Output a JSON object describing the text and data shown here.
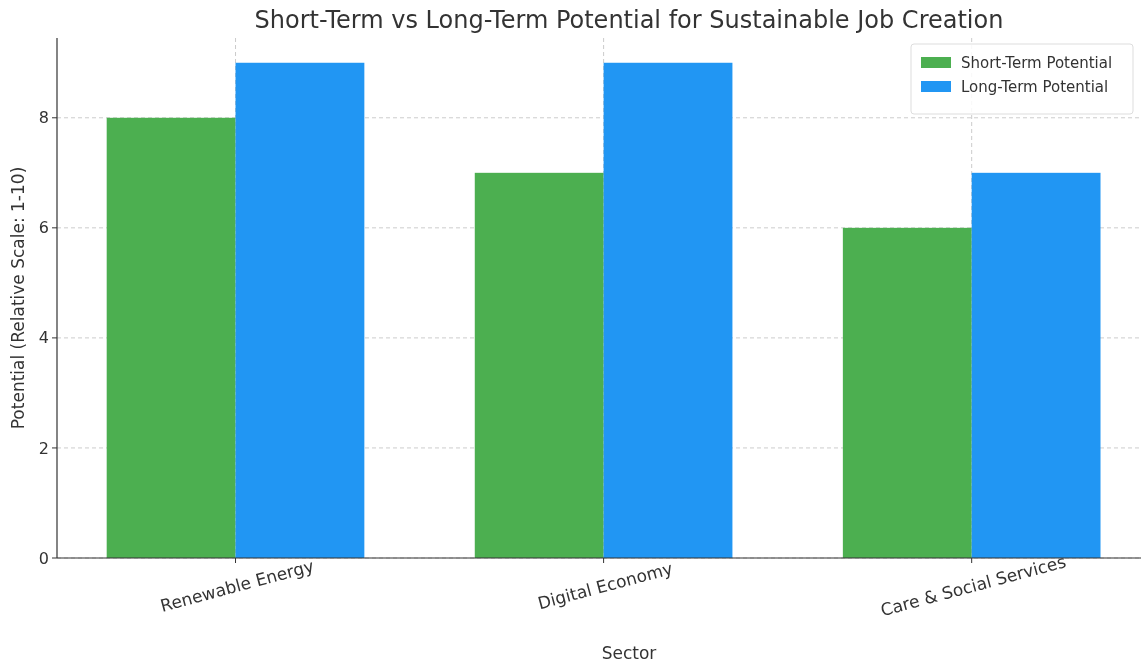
{
  "chart_data": {
    "type": "bar",
    "title": "Short-Term vs Long-Term Potential for Sustainable Job Creation",
    "xlabel": "Sector",
    "ylabel": "Potential (Relative Scale: 1-10)",
    "categories": [
      "Renewable Energy",
      "Digital Economy",
      "Care & Social Services"
    ],
    "series": [
      {
        "name": "Short-Term Potential",
        "color": "#4caf50",
        "values": [
          8,
          7,
          6
        ]
      },
      {
        "name": "Long-Term Potential",
        "color": "#2196f3",
        "values": [
          9,
          9,
          7
        ]
      }
    ],
    "ylim": [
      0,
      9.45
    ],
    "yticks": [
      0,
      2,
      4,
      6,
      8
    ],
    "grid": true,
    "legend": "top right"
  }
}
